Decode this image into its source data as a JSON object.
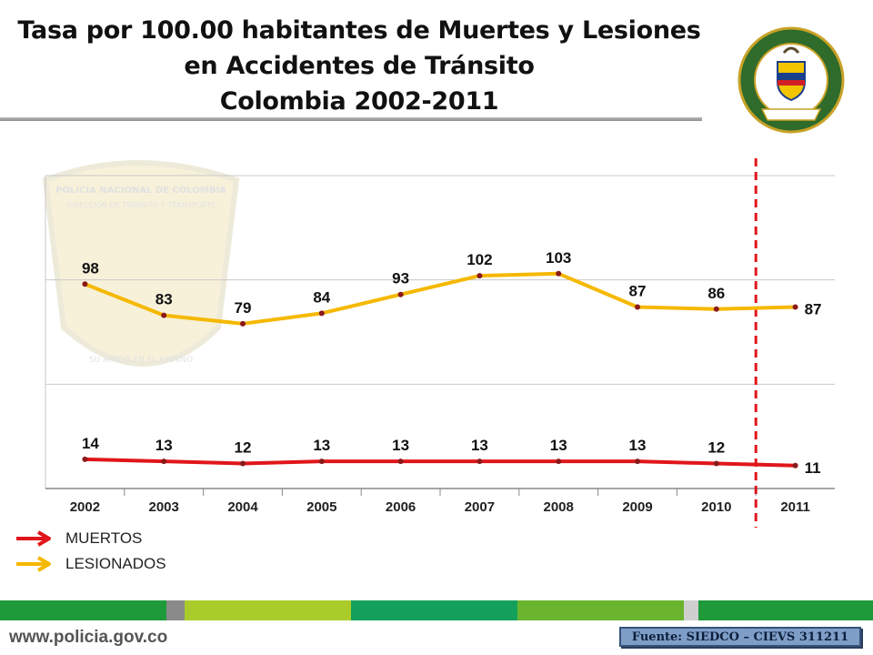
{
  "title": {
    "line1": "Tasa por 100.00 habitantes de Muertes y Lesiones",
    "line2": "en Accidentes de Tránsito",
    "line3": "Colombia 2002-2011"
  },
  "seal": {
    "text_top": "REPÚBLICA DE COLOMBIA",
    "text_mid": "POLICÍA NACIONAL",
    "text_bottom": "DIOS Y PATRIA"
  },
  "watermark": {
    "text_top": "POLICIA NACIONAL DE COLOMBIA",
    "text_sub": "DIRECCION DE TRANSITO Y TRANSPORTE",
    "text_bottom": "SU AMIGO EN EL CAMINO"
  },
  "chart_data": {
    "type": "line",
    "categories": [
      "2002",
      "2003",
      "2004",
      "2005",
      "2006",
      "2007",
      "2008",
      "2009",
      "2010",
      "2011"
    ],
    "series": [
      {
        "name": "LESIONADOS",
        "color": "#f5b800",
        "values": [
          98,
          83,
          79,
          84,
          93,
          102,
          103,
          87,
          86,
          87
        ]
      },
      {
        "name": "MUERTOS",
        "color": "#e0161b",
        "values": [
          14,
          13,
          12,
          13,
          13,
          13,
          13,
          13,
          12,
          11
        ]
      }
    ],
    "ylim": [
      0,
      150
    ],
    "grid": true,
    "legend_position": "bottom-left",
    "separator_after_category": "2010",
    "separator_color": "#e0161b"
  },
  "legend": {
    "items": [
      {
        "label": "MUERTOS",
        "color": "#e0161b"
      },
      {
        "label": "LESIONADOS",
        "color": "#f5b800"
      }
    ]
  },
  "footer": {
    "website": "www.policia.gov.co",
    "source": "Fuente: SIEDCO – CIEVS 311211",
    "bar_colors": [
      "#1e9a3a",
      "#8a8a8a",
      "#a9cc2a",
      "#14a05a",
      "#6ab42e",
      "#cfcfcf",
      "#1e9a3a"
    ]
  }
}
